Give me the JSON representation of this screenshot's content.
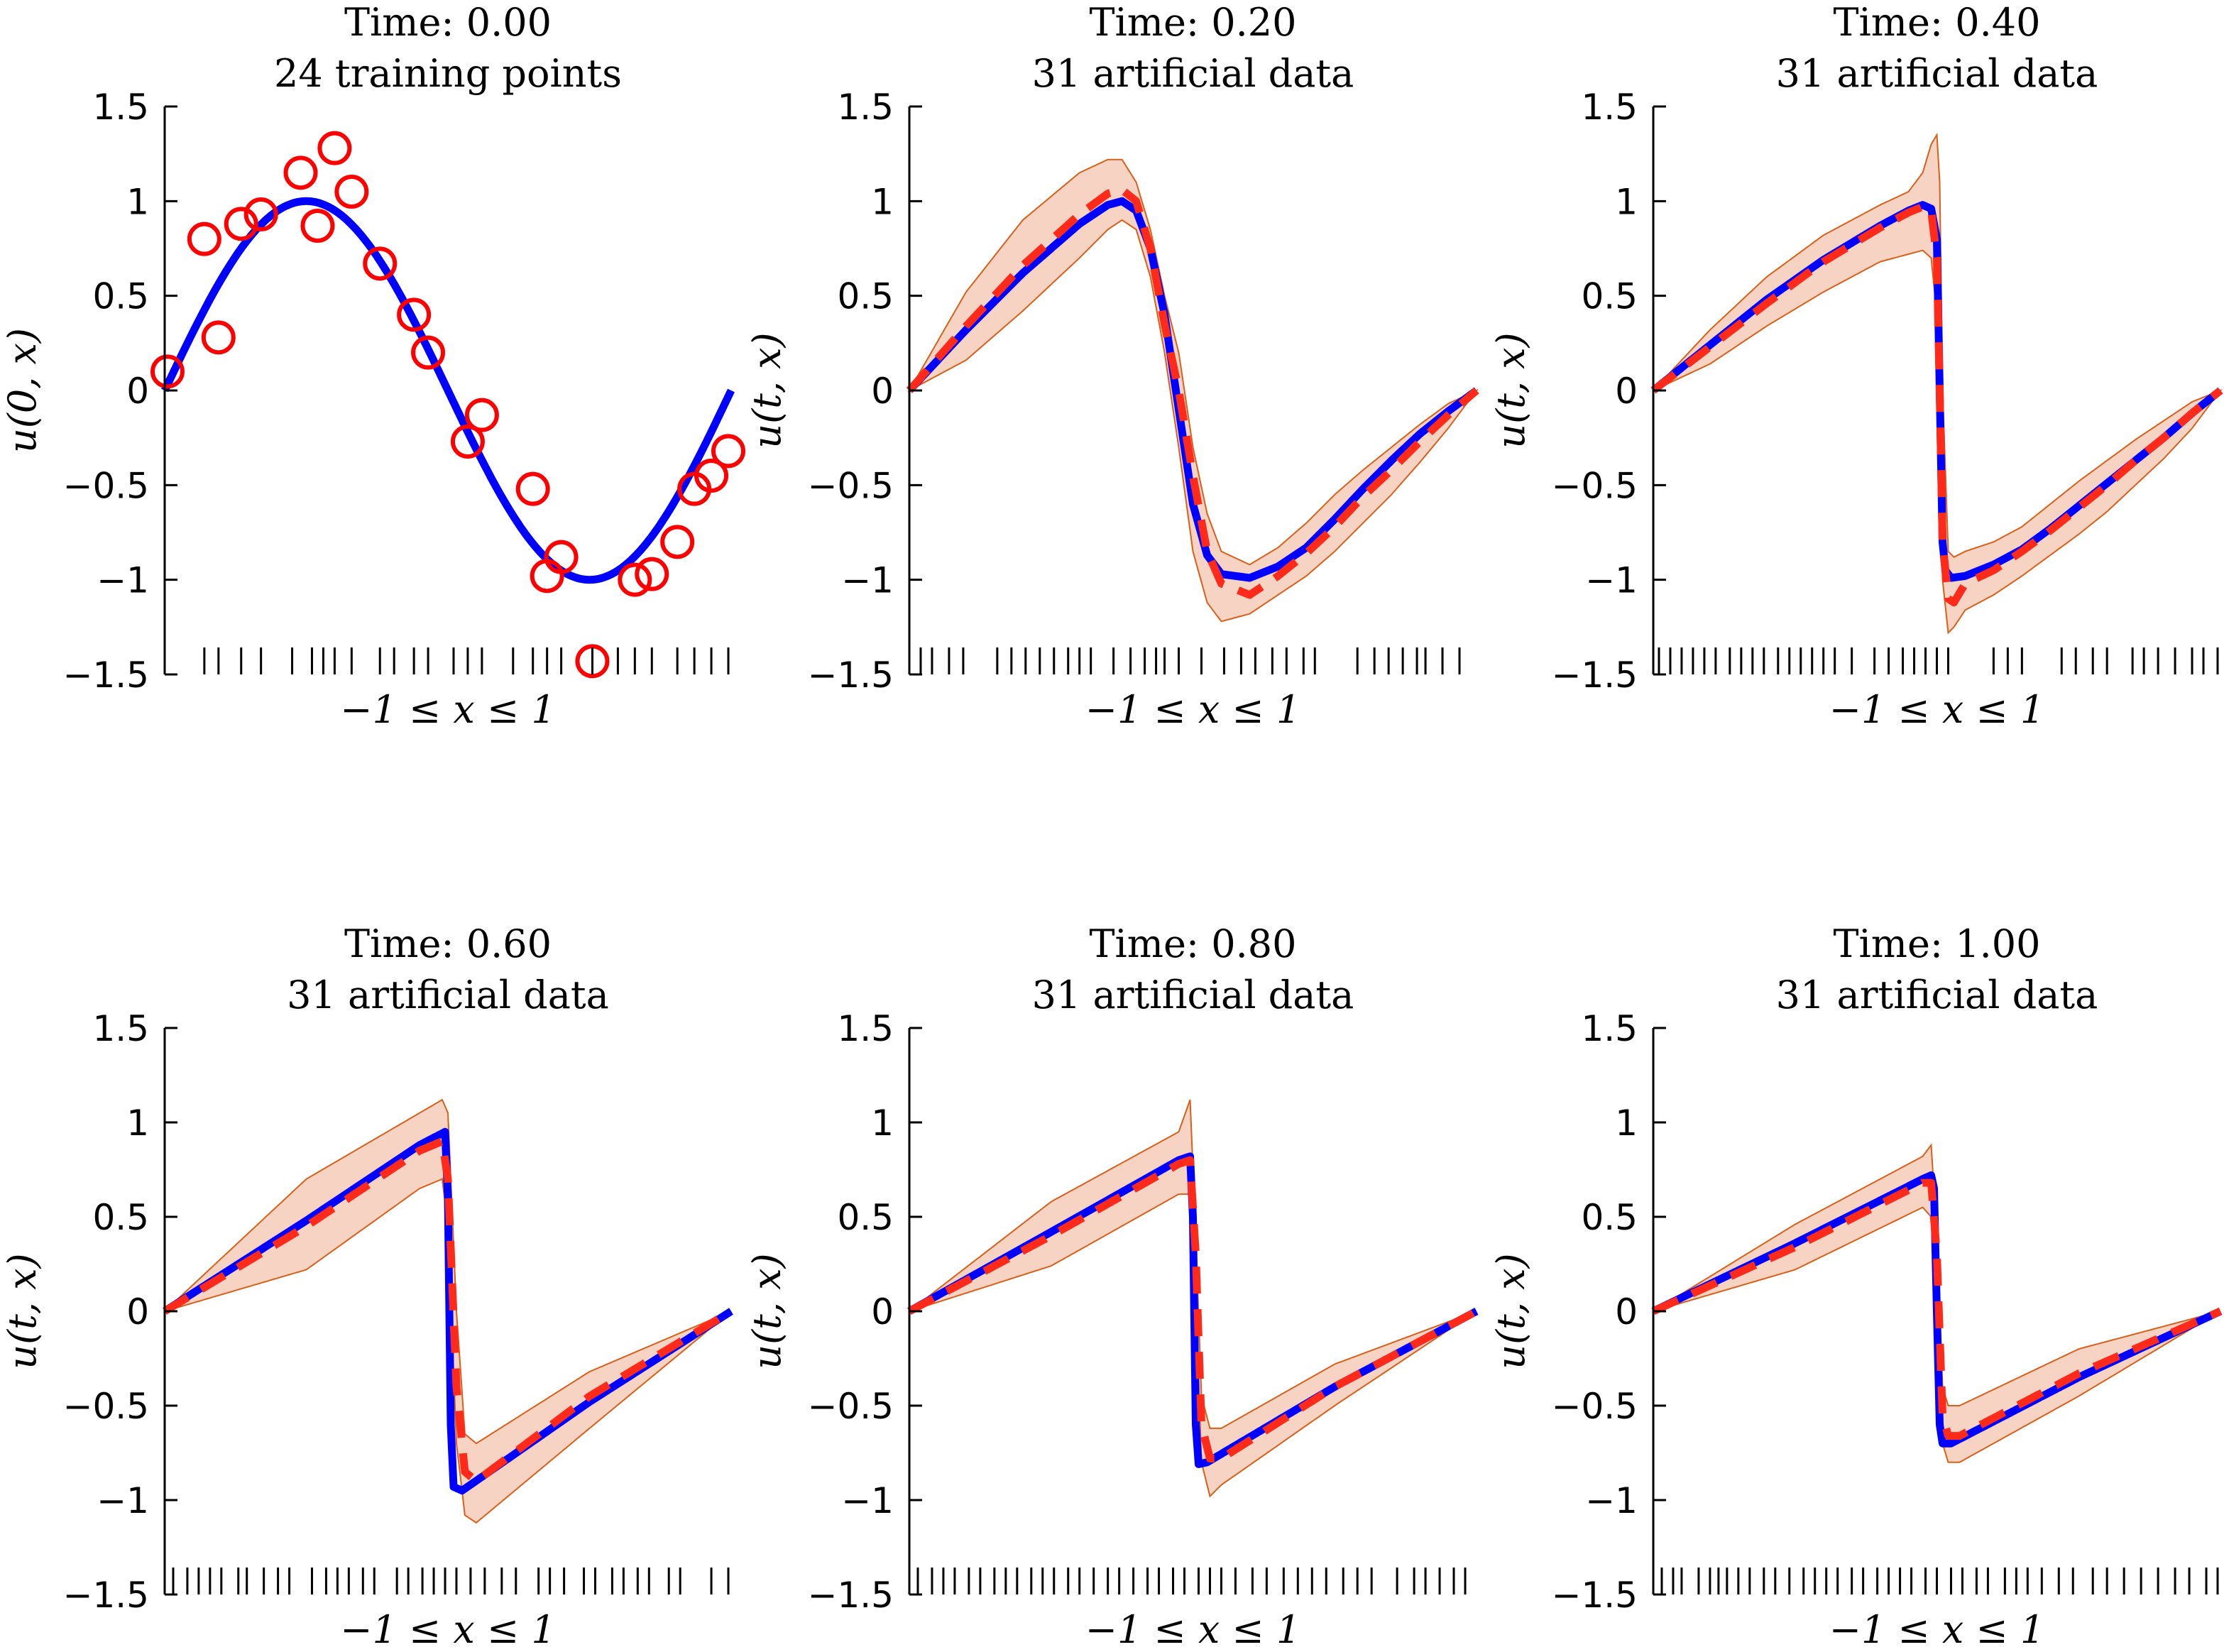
{
  "figure": {
    "colors": {
      "exact": "#0000ff",
      "prediction": "#ff2a1a",
      "band_fill": "#f7d3c3",
      "band_edge": "#d9601a",
      "training": "#ff0000",
      "axis": "#000000"
    }
  },
  "chart_data": [
    {
      "type": "line",
      "title": "Time: 0.00",
      "subtitle": "24 training points",
      "xlabel": "−1 ≤ x ≤ 1",
      "ylabel": "u(0, x)",
      "xlim": [
        -1,
        1
      ],
      "ylim": [
        -1.5,
        1.5
      ],
      "yticks": [
        "1.5",
        "1",
        "0.5",
        "0",
        "−0.5",
        "−1",
        "−1.5"
      ],
      "exact": {
        "kind": "sine"
      },
      "training_points": {
        "x": [
          -0.99,
          -0.86,
          -0.81,
          -0.73,
          -0.66,
          -0.52,
          -0.46,
          -0.4,
          -0.34,
          -0.24,
          -0.12,
          -0.07,
          0.07,
          0.12,
          0.3,
          0.35,
          0.4,
          0.51,
          0.66,
          0.72,
          0.81,
          0.87,
          0.93,
          0.99
        ],
        "y": [
          0.1,
          0.8,
          0.28,
          0.88,
          0.93,
          1.15,
          0.87,
          1.28,
          1.05,
          0.67,
          0.4,
          0.2,
          -0.27,
          -0.13,
          -0.52,
          -0.98,
          -0.88,
          -1.43,
          -1.0,
          -0.97,
          -0.8,
          -0.52,
          -0.45,
          -0.32
        ]
      },
      "rug_x": [
        -0.86,
        -0.81,
        -0.73,
        -0.66,
        -0.55,
        -0.48,
        -0.44,
        -0.4,
        -0.34,
        -0.24,
        -0.19,
        -0.12,
        -0.07,
        0.02,
        0.07,
        0.12,
        0.23,
        0.3,
        0.35,
        0.4,
        0.51,
        0.6,
        0.66,
        0.72,
        0.81,
        0.87,
        0.93,
        0.99
      ]
    },
    {
      "type": "line",
      "title": "Time: 0.20",
      "subtitle": "31 artificial data",
      "xlabel": "−1 ≤ x ≤ 1",
      "ylabel": "u(t, x)",
      "xlim": [
        -1,
        1
      ],
      "ylim": [
        -1.5,
        1.5
      ],
      "yticks": [
        "1.5",
        "1",
        "0.5",
        "0",
        "−0.5",
        "−1",
        "−1.5"
      ],
      "exact": {
        "kind": "shock",
        "xp": [
          -1,
          -0.8,
          -0.6,
          -0.4,
          -0.3,
          -0.25,
          -0.2,
          -0.15,
          -0.1,
          -0.05,
          0,
          0.05,
          0.1,
          0.2,
          0.3,
          0.4,
          0.5,
          0.6,
          0.7,
          0.8,
          0.9,
          1.0
        ],
        "yp": [
          0,
          0.32,
          0.62,
          0.88,
          0.98,
          1.0,
          0.95,
          0.75,
          0.4,
          -0.1,
          -0.6,
          -0.87,
          -0.97,
          -0.99,
          -0.93,
          -0.83,
          -0.68,
          -0.52,
          -0.37,
          -0.23,
          -0.11,
          0
        ]
      },
      "prediction": {
        "xp": [
          -1,
          -0.8,
          -0.6,
          -0.4,
          -0.3,
          -0.25,
          -0.2,
          -0.15,
          -0.1,
          -0.05,
          0,
          0.05,
          0.1,
          0.2,
          0.3,
          0.4,
          0.5,
          0.6,
          0.7,
          0.8,
          0.9,
          1.0
        ],
        "yp": [
          0,
          0.34,
          0.66,
          0.93,
          1.04,
          1.06,
          1.0,
          0.75,
          0.35,
          0.0,
          -0.45,
          -0.85,
          -1.02,
          -1.08,
          -0.98,
          -0.86,
          -0.72,
          -0.56,
          -0.42,
          -0.27,
          -0.13,
          0
        ]
      },
      "band_upper": [
        0,
        0.52,
        0.9,
        1.15,
        1.22,
        1.22,
        1.1,
        0.85,
        0.5,
        0.2,
        -0.3,
        -0.65,
        -0.85,
        -0.92,
        -0.83,
        -0.7,
        -0.55,
        -0.42,
        -0.3,
        -0.18,
        -0.07,
        0
      ],
      "band_lower": [
        0,
        0.16,
        0.42,
        0.7,
        0.85,
        0.9,
        0.85,
        0.6,
        0.2,
        -0.3,
        -0.85,
        -1.12,
        -1.22,
        -1.18,
        -1.08,
        -0.98,
        -0.85,
        -0.7,
        -0.55,
        -0.38,
        -0.2,
        0
      ],
      "rug_x": [
        -0.96,
        -0.92,
        -0.86,
        -0.81,
        -0.69,
        -0.64,
        -0.59,
        -0.54,
        -0.49,
        -0.44,
        -0.4,
        -0.36,
        -0.28,
        -0.22,
        -0.17,
        -0.13,
        -0.1,
        -0.05,
        0.03,
        0.11,
        0.17,
        0.22,
        0.28,
        0.33,
        0.39,
        0.43,
        0.58,
        0.64,
        0.69,
        0.74,
        0.79,
        0.82,
        0.88,
        0.94
      ]
    },
    {
      "type": "line",
      "title": "Time: 0.40",
      "subtitle": "31 artificial data",
      "xlabel": "−1 ≤ x ≤ 1",
      "ylabel": "u(t, x)",
      "xlim": [
        -1,
        1
      ],
      "ylim": [
        -1.5,
        1.5
      ],
      "yticks": [
        "1.5",
        "1",
        "0.5",
        "0",
        "−0.5",
        "−1",
        "−1.5"
      ],
      "exact": {
        "kind": "shock",
        "xp": [
          -1,
          -0.8,
          -0.6,
          -0.4,
          -0.2,
          -0.1,
          -0.05,
          -0.02,
          0.0,
          0.01,
          0.02,
          0.03,
          0.05,
          0.1,
          0.2,
          0.3,
          0.4,
          0.5,
          0.6,
          0.7,
          0.8,
          0.9,
          1.0
        ],
        "yp": [
          0,
          0.24,
          0.48,
          0.69,
          0.87,
          0.95,
          0.98,
          0.96,
          0.8,
          0.0,
          -0.8,
          -0.95,
          -0.99,
          -0.98,
          -0.92,
          -0.84,
          -0.73,
          -0.61,
          -0.49,
          -0.37,
          -0.25,
          -0.12,
          0
        ]
      },
      "prediction": {
        "xp": [
          -1,
          -0.8,
          -0.6,
          -0.4,
          -0.2,
          -0.1,
          -0.05,
          -0.02,
          0.0,
          0.01,
          0.02,
          0.04,
          0.06,
          0.1,
          0.2,
          0.3,
          0.4,
          0.5,
          0.6,
          0.7,
          0.8,
          0.9,
          1.0
        ],
        "yp": [
          0,
          0.23,
          0.46,
          0.68,
          0.86,
          0.94,
          0.97,
          0.95,
          0.7,
          0.0,
          -0.8,
          -1.1,
          -1.12,
          -1.02,
          -0.95,
          -0.85,
          -0.74,
          -0.62,
          -0.5,
          -0.37,
          -0.25,
          -0.12,
          0
        ]
      },
      "band_upper": [
        0,
        0.32,
        0.6,
        0.82,
        0.98,
        1.05,
        1.15,
        1.3,
        1.35,
        1.1,
        0.0,
        -0.85,
        -0.88,
        -0.85,
        -0.8,
        -0.72,
        -0.6,
        -0.48,
        -0.37,
        -0.26,
        -0.16,
        -0.06,
        0
      ],
      "band_lower": [
        0,
        0.14,
        0.34,
        0.52,
        0.68,
        0.72,
        0.74,
        0.7,
        0.4,
        -0.4,
        -1.0,
        -1.28,
        -1.25,
        -1.16,
        -1.08,
        -0.98,
        -0.87,
        -0.76,
        -0.64,
        -0.5,
        -0.36,
        -0.2,
        0
      ],
      "rug_x": [
        -0.98,
        -0.94,
        -0.9,
        -0.86,
        -0.82,
        -0.78,
        -0.73,
        -0.69,
        -0.65,
        -0.61,
        -0.56,
        -0.52,
        -0.48,
        -0.44,
        -0.4,
        -0.36,
        -0.3,
        -0.22,
        -0.17,
        -0.12,
        -0.08,
        -0.04,
        0.0,
        0.04,
        0.2,
        0.25,
        0.3,
        0.44,
        0.49,
        0.55,
        0.6,
        0.69,
        0.73,
        0.78,
        0.84,
        0.9,
        0.94,
        0.99
      ]
    },
    {
      "type": "line",
      "title": "Time: 0.60",
      "subtitle": "31 artificial data",
      "xlabel": "−1 ≤ x ≤ 1",
      "ylabel": "u(t, x)",
      "xlim": [
        -1,
        1
      ],
      "ylim": [
        -1.5,
        1.5
      ],
      "yticks": [
        "1.5",
        "1",
        "0.5",
        "0",
        "−0.5",
        "−1",
        "−1.5"
      ],
      "exact": {
        "kind": "shock",
        "xp": [
          -1,
          -0.5,
          -0.1,
          -0.01,
          0.0,
          0.01,
          0.02,
          0.05,
          0.5,
          1.0
        ],
        "yp": [
          0,
          0.48,
          0.88,
          0.95,
          0.6,
          -0.6,
          -0.93,
          -0.95,
          -0.48,
          0
        ]
      },
      "prediction": {
        "xp": [
          -1,
          -0.5,
          -0.1,
          -0.02,
          0.0,
          0.03,
          0.06,
          0.1,
          0.5,
          1.0
        ],
        "yp": [
          0,
          0.45,
          0.85,
          0.9,
          0.7,
          -0.4,
          -0.85,
          -0.9,
          -0.45,
          0
        ]
      },
      "band_upper": [
        0,
        0.7,
        1.05,
        1.12,
        1.05,
        0.0,
        -0.65,
        -0.7,
        -0.32,
        0
      ],
      "band_lower": [
        0,
        0.22,
        0.65,
        0.7,
        0.45,
        -0.7,
        -1.08,
        -1.12,
        -0.62,
        0
      ],
      "rug_x": [
        -0.97,
        -0.92,
        -0.88,
        -0.84,
        -0.8,
        -0.74,
        -0.71,
        -0.65,
        -0.6,
        -0.56,
        -0.48,
        -0.43,
        -0.39,
        -0.35,
        -0.3,
        -0.26,
        -0.18,
        -0.14,
        -0.09,
        -0.05,
        -0.01,
        0.03,
        0.08,
        0.13,
        0.19,
        0.24,
        0.32,
        0.36,
        0.41,
        0.48,
        0.52,
        0.58,
        0.62,
        0.67,
        0.71,
        0.78,
        0.82,
        0.93,
        0.99
      ]
    },
    {
      "type": "line",
      "title": "Time: 0.80",
      "subtitle": "31 artificial data",
      "xlabel": "−1 ≤ x ≤ 1",
      "ylabel": "u(t, x)",
      "xlim": [
        -1,
        1
      ],
      "ylim": [
        -1.5,
        1.5
      ],
      "yticks": [
        "1.5",
        "1",
        "0.5",
        "0",
        "−0.5",
        "−1",
        "−1.5"
      ],
      "exact": {
        "kind": "shock",
        "xp": [
          -1,
          -0.5,
          -0.05,
          -0.01,
          0.0,
          0.01,
          0.02,
          0.05,
          0.5,
          1.0
        ],
        "yp": [
          0,
          0.42,
          0.8,
          0.82,
          0.5,
          -0.6,
          -0.81,
          -0.8,
          -0.4,
          0
        ]
      },
      "prediction": {
        "xp": [
          -1,
          -0.5,
          -0.05,
          -0.01,
          0.01,
          0.03,
          0.06,
          0.1,
          0.5,
          1.0
        ],
        "yp": [
          0,
          0.4,
          0.78,
          0.8,
          0.3,
          -0.6,
          -0.78,
          -0.78,
          -0.4,
          0
        ]
      },
      "band_upper": [
        0,
        0.58,
        0.95,
        1.12,
        0.4,
        -0.45,
        -0.62,
        -0.62,
        -0.28,
        0
      ],
      "band_lower": [
        0,
        0.24,
        0.62,
        0.62,
        0.1,
        -0.8,
        -0.98,
        -0.92,
        -0.5,
        0
      ],
      "rug_x": [
        -0.97,
        -0.92,
        -0.88,
        -0.84,
        -0.79,
        -0.75,
        -0.7,
        -0.66,
        -0.62,
        -0.57,
        -0.53,
        -0.49,
        -0.44,
        -0.4,
        -0.35,
        -0.3,
        -0.26,
        -0.21,
        -0.16,
        -0.12,
        -0.07,
        -0.03,
        0.02,
        0.06,
        0.1,
        0.15,
        0.21,
        0.26,
        0.32,
        0.37,
        0.42,
        0.47,
        0.53,
        0.58,
        0.63,
        0.72,
        0.78,
        0.82,
        0.87,
        0.92,
        0.96
      ]
    },
    {
      "type": "line",
      "title": "Time: 1.00",
      "subtitle": "31 artificial data",
      "xlabel": "−1 ≤ x ≤ 1",
      "ylabel": "u(t, x)",
      "xlim": [
        -1,
        1
      ],
      "ylim": [
        -1.5,
        1.5
      ],
      "yticks": [
        "1.5",
        "1",
        "0.5",
        "0",
        "−0.5",
        "−1",
        "−1.5"
      ],
      "exact": {
        "kind": "shock",
        "xp": [
          -1,
          -0.5,
          -0.05,
          -0.02,
          -0.01,
          0.0,
          0.01,
          0.02,
          0.05,
          0.5,
          1.0
        ],
        "yp": [
          0,
          0.36,
          0.7,
          0.72,
          0.65,
          0.0,
          -0.6,
          -0.7,
          -0.7,
          -0.35,
          0
        ]
      },
      "prediction": {
        "xp": [
          -1,
          -0.5,
          -0.05,
          -0.02,
          0.0,
          0.02,
          0.04,
          0.08,
          0.5,
          1.0
        ],
        "yp": [
          0,
          0.34,
          0.68,
          0.68,
          0.3,
          -0.55,
          -0.66,
          -0.66,
          -0.33,
          0
        ]
      },
      "band_upper": [
        0,
        0.46,
        0.82,
        0.88,
        0.4,
        -0.4,
        -0.5,
        -0.5,
        -0.2,
        0
      ],
      "band_lower": [
        0,
        0.22,
        0.55,
        0.5,
        0.1,
        -0.7,
        -0.8,
        -0.8,
        -0.45,
        0
      ],
      "rug_x": [
        -0.97,
        -0.93,
        -0.9,
        -0.84,
        -0.8,
        -0.77,
        -0.74,
        -0.7,
        -0.66,
        -0.61,
        -0.57,
        -0.52,
        -0.47,
        -0.43,
        -0.39,
        -0.35,
        -0.3,
        -0.26,
        -0.21,
        -0.17,
        -0.13,
        -0.09,
        -0.04,
        0.0,
        0.05,
        0.09,
        0.14,
        0.18,
        0.24,
        0.28,
        0.32,
        0.37,
        0.43,
        0.48,
        0.55,
        0.6,
        0.66,
        0.72,
        0.78,
        0.84,
        0.89,
        0.95,
        0.99
      ]
    }
  ]
}
